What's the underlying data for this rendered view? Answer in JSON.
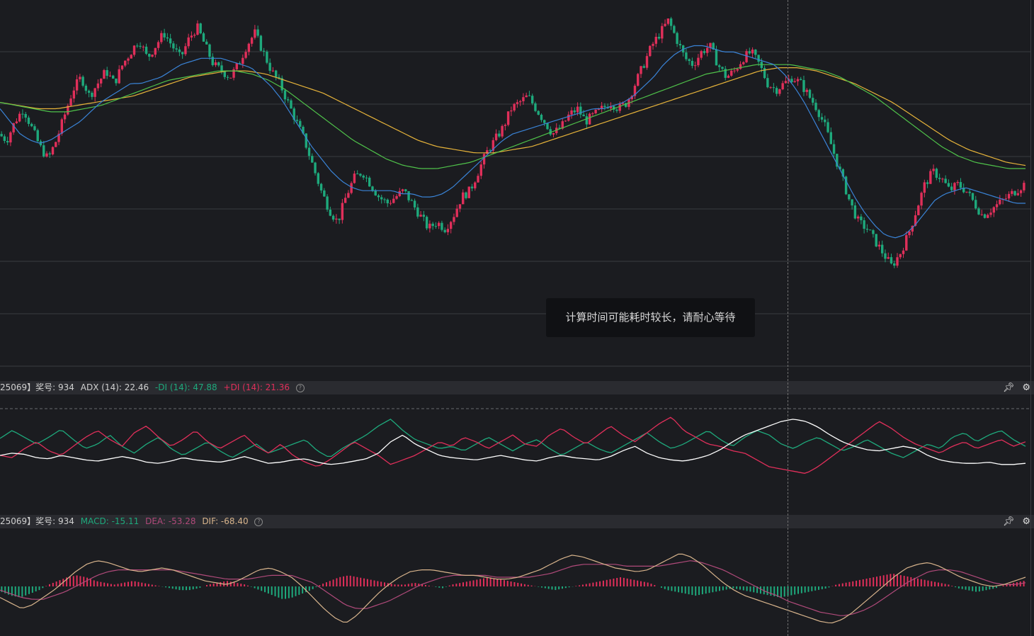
{
  "colors": {
    "background": "#1b1c20",
    "up": "#e02f5a",
    "down": "#1ea97c",
    "ma_short": "#3a83d6",
    "ma_mid": "#4fc24a",
    "ma_long": "#e6b33a",
    "adx_line": "#ffffff",
    "minus_di": "#1ea97c",
    "plus_di": "#e02f5a",
    "dif": "#d8b48c",
    "dea": "#b04a7a"
  },
  "tooltip": {
    "text": "计算时间可能耗时较长，请耐心等待"
  },
  "adx_header": {
    "prefix": "25069】奖号: 934",
    "adx": "ADX (14): 22.46",
    "minus_di": "-DI (14): 47.88",
    "plus_di": "+DI (14): 21.36",
    "help": "?"
  },
  "macd_header": {
    "prefix": "25069】奖号: 934",
    "macd": "MACD: -15.11",
    "dea": "DEA: -53.28",
    "dif": "DIF: -68.40",
    "help": "?"
  },
  "chart_data": [
    {
      "type": "candlestick",
      "y_range": [
        0,
        100
      ],
      "price_path": [
        62,
        60,
        66,
        70,
        64,
        58,
        54,
        60,
        68,
        76,
        80,
        74,
        78,
        82,
        78,
        84,
        88,
        92,
        86,
        90,
        94,
        90,
        86,
        92,
        96,
        90,
        84,
        82,
        80,
        84,
        90,
        94,
        88,
        82,
        78,
        72,
        66,
        60,
        52,
        44,
        38,
        34,
        42,
        48,
        50,
        46,
        42,
        40,
        42,
        44,
        40,
        36,
        32,
        34,
        32,
        36,
        42,
        44,
        50,
        56,
        60,
        64,
        70,
        72,
        74,
        70,
        66,
        62,
        64,
        68,
        70,
        66,
        68,
        70,
        72,
        70,
        72,
        78,
        84,
        90,
        94,
        98,
        92,
        86,
        84,
        88,
        90,
        84,
        80,
        82,
        86,
        88,
        84,
        78,
        76,
        78,
        80,
        78,
        74,
        70,
        64,
        56,
        48,
        40,
        34,
        32,
        28,
        24,
        20,
        24,
        30,
        38,
        46,
        50,
        48,
        44,
        46,
        44,
        40,
        36,
        38,
        40,
        42,
        44,
        46
      ],
      "ma_short_path": [
        70,
        66,
        62,
        60,
        59,
        60,
        62,
        64,
        66,
        69,
        72,
        74,
        76,
        78,
        78,
        79,
        80,
        82,
        84,
        85,
        86,
        86,
        86,
        85,
        84,
        83,
        80,
        77,
        73,
        68,
        63,
        58,
        54,
        50,
        47,
        45,
        44,
        44,
        44,
        44,
        43,
        43,
        42,
        42,
        43,
        45,
        48,
        51,
        54,
        57,
        60,
        62,
        63,
        64,
        65,
        66,
        67,
        68,
        69,
        70,
        70,
        71,
        72,
        74,
        77,
        80,
        84,
        87,
        89,
        90,
        90,
        89,
        88,
        88,
        87,
        86,
        85,
        84,
        81,
        77,
        72,
        66,
        60,
        54,
        48,
        42,
        37,
        33,
        30,
        29,
        30,
        33,
        37,
        41,
        43,
        44,
        45,
        44,
        43,
        42,
        41,
        40,
        40
      ],
      "ma_mid_path": [
        72,
        71,
        70,
        69,
        69,
        70,
        71,
        73,
        75,
        77,
        79,
        80,
        81,
        82,
        82,
        81,
        79,
        76,
        72,
        68,
        64,
        60,
        57,
        54,
        52,
        51,
        51,
        52,
        53,
        55,
        57,
        59,
        61,
        63,
        65,
        67,
        69,
        71,
        73,
        75,
        77,
        79,
        81,
        82,
        83,
        84,
        84,
        84,
        83,
        82,
        80,
        77,
        74,
        70,
        66,
        62,
        58,
        55,
        53,
        52,
        51,
        51
      ],
      "ma_long_path": [
        72,
        71,
        70,
        70,
        71,
        72,
        73,
        74,
        76,
        78,
        80,
        81,
        82,
        82,
        81,
        79,
        77,
        75,
        72,
        69,
        66,
        63,
        60,
        58,
        57,
        56,
        56,
        57,
        58,
        60,
        62,
        64,
        66,
        68,
        70,
        72,
        74,
        76,
        78,
        80,
        82,
        83,
        83,
        82,
        80,
        78,
        75,
        72,
        68,
        64,
        60,
        57,
        55,
        53,
        52
      ]
    },
    {
      "type": "line",
      "name": "ADX",
      "series": [
        {
          "name": "ADX",
          "values": [
            40,
            42,
            41,
            38,
            37,
            40,
            38,
            36,
            35,
            37,
            39,
            37,
            34,
            33,
            35,
            38,
            36,
            35,
            34,
            36,
            39,
            36,
            33,
            34,
            36,
            37,
            34,
            32,
            33,
            35,
            37,
            42,
            52,
            58,
            50,
            45,
            40,
            38,
            37,
            36,
            38,
            40,
            38,
            36,
            35,
            38,
            40,
            38,
            37,
            36,
            39,
            44,
            48,
            42,
            38,
            36,
            35,
            37,
            40,
            45,
            52,
            58,
            62,
            66,
            70,
            72,
            70,
            65,
            58,
            52,
            48,
            45,
            44,
            46,
            48,
            46,
            40,
            36,
            34,
            33,
            33,
            34,
            32,
            32,
            33
          ]
        },
        {
          "name": "-DI",
          "values": [
            55,
            62,
            56,
            50,
            56,
            63,
            54,
            46,
            50,
            58,
            48,
            42,
            50,
            56,
            46,
            40,
            46,
            52,
            44,
            38,
            44,
            50,
            42,
            46,
            50,
            54,
            44,
            38,
            46,
            52,
            58,
            66,
            72,
            62,
            54,
            50,
            46,
            48,
            44,
            50,
            56,
            50,
            44,
            50,
            54,
            46,
            40,
            46,
            52,
            46,
            42,
            48,
            54,
            60,
            52,
            46,
            50,
            56,
            62,
            54,
            48,
            56,
            62,
            58,
            50,
            46,
            52,
            56,
            50,
            44,
            48,
            54,
            48,
            42,
            38,
            44,
            50,
            46,
            56,
            60,
            52,
            58,
            62,
            54,
            48
          ]
        },
        {
          "name": "+DI",
          "values": [
            40,
            38,
            46,
            52,
            44,
            40,
            48,
            56,
            62,
            54,
            48,
            60,
            66,
            56,
            48,
            54,
            62,
            52,
            46,
            52,
            58,
            48,
            42,
            50,
            40,
            34,
            30,
            36,
            44,
            52,
            46,
            40,
            32,
            36,
            40,
            46,
            52,
            48,
            56,
            52,
            46,
            52,
            58,
            50,
            48,
            58,
            64,
            56,
            50,
            58,
            66,
            58,
            52,
            60,
            68,
            74,
            62,
            56,
            50,
            48,
            44,
            42,
            36,
            30,
            28,
            26,
            24,
            30,
            38,
            46,
            54,
            62,
            70,
            64,
            56,
            50,
            46,
            42,
            48,
            52,
            46,
            50,
            54,
            48,
            52
          ]
        }
      ]
    },
    {
      "type": "bar",
      "name": "MACD",
      "histogram": [
        -3,
        -5,
        -6,
        -4,
        -2,
        1,
        3,
        5,
        6,
        5,
        3,
        2,
        1,
        2,
        3,
        2,
        1,
        0,
        -1,
        -2,
        -2,
        -1,
        1,
        2,
        3,
        2,
        1,
        -1,
        -3,
        -5,
        -7,
        -6,
        -4,
        -2,
        1,
        3,
        5,
        6,
        5,
        4,
        3,
        2,
        1,
        1,
        2,
        1,
        0,
        -1,
        1,
        2,
        3,
        4,
        5,
        4,
        3,
        2,
        1,
        0,
        -1,
        -2,
        -1,
        0,
        1,
        2,
        3,
        4,
        5,
        4,
        3,
        2,
        0,
        -2,
        -3,
        -4,
        -5,
        -4,
        -3,
        -2,
        -1,
        -2,
        -3,
        -4,
        -5,
        -6,
        -5,
        -4,
        -3,
        -2,
        -1,
        1,
        2,
        3,
        4,
        5,
        6,
        7,
        6,
        5,
        4,
        3,
        2,
        1,
        -1,
        -2,
        -3,
        -2,
        -1,
        1,
        2,
        3
      ],
      "series": [
        {
          "name": "DIF",
          "values": [
            -6,
            -9,
            -12,
            -10,
            -6,
            -2,
            3,
            8,
            12,
            14,
            13,
            11,
            9,
            8,
            9,
            10,
            9,
            7,
            5,
            3,
            2,
            1,
            3,
            6,
            9,
            10,
            8,
            5,
            0,
            -6,
            -12,
            -17,
            -20,
            -16,
            -10,
            -4,
            1,
            5,
            8,
            9,
            9,
            8,
            7,
            6,
            6,
            5,
            4,
            4,
            5,
            7,
            9,
            12,
            15,
            17,
            16,
            14,
            12,
            10,
            9,
            8,
            9,
            12,
            15,
            18,
            16,
            12,
            7,
            2,
            -2,
            -5,
            -7,
            -9,
            -11,
            -13,
            -15,
            -17,
            -19,
            -20,
            -18,
            -14,
            -9,
            -4,
            1,
            6,
            10,
            12,
            13,
            11,
            8,
            5,
            3,
            1,
            0,
            1,
            3,
            5
          ]
        },
        {
          "name": "DEA",
          "values": [
            -2,
            -4,
            -6,
            -7,
            -7,
            -5,
            -3,
            0,
            3,
            6,
            8,
            9,
            9,
            9,
            9,
            9,
            9,
            8,
            7,
            6,
            5,
            4,
            4,
            4,
            5,
            6,
            6,
            6,
            4,
            2,
            -2,
            -6,
            -10,
            -12,
            -12,
            -10,
            -8,
            -5,
            -2,
            1,
            3,
            5,
            6,
            6,
            6,
            6,
            5,
            5,
            5,
            5,
            6,
            7,
            9,
            11,
            12,
            12,
            12,
            12,
            11,
            11,
            11,
            11,
            12,
            13,
            14,
            13,
            11,
            9,
            6,
            3,
            0,
            -3,
            -5,
            -8,
            -10,
            -12,
            -14,
            -15,
            -16,
            -15,
            -13,
            -10,
            -6,
            -2,
            2,
            5,
            8,
            9,
            9,
            8,
            6,
            4,
            2,
            1,
            1,
            2
          ]
        }
      ]
    }
  ]
}
